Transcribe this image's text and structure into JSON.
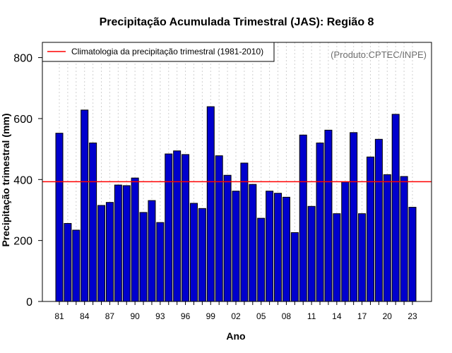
{
  "chart_data": {
    "type": "bar",
    "title": "Precipitação Acumulada Trimestral (JAS): Região 8",
    "xlabel": "Ano",
    "ylabel": "Precipitação trimestral (mm)",
    "ylim": [
      0,
      850
    ],
    "yticks": [
      0,
      200,
      400,
      600,
      800
    ],
    "grid": "vertical dotted",
    "credit": "(Produto:CPTEC/INPE)",
    "categories": [
      "81",
      "82",
      "83",
      "84",
      "85",
      "86",
      "87",
      "88",
      "89",
      "90",
      "91",
      "92",
      "93",
      "94",
      "95",
      "96",
      "97",
      "98",
      "99",
      "00",
      "01",
      "02",
      "03",
      "04",
      "05",
      "06",
      "07",
      "08",
      "09",
      "10",
      "11",
      "12",
      "13",
      "14",
      "15",
      "16",
      "17",
      "18",
      "19",
      "20",
      "21",
      "22",
      "23"
    ],
    "xtick_labels": [
      "81",
      "84",
      "87",
      "90",
      "93",
      "96",
      "99",
      "02",
      "05",
      "08",
      "11",
      "14",
      "17",
      "20",
      "23"
    ],
    "values": [
      552,
      256,
      234,
      628,
      520,
      315,
      325,
      382,
      380,
      405,
      292,
      331,
      259,
      484,
      494,
      482,
      322,
      305,
      639,
      478,
      414,
      362,
      454,
      384,
      273,
      362,
      355,
      342,
      226,
      546,
      312,
      520,
      562,
      288,
      392,
      554,
      288,
      474,
      532,
      416,
      614,
      410,
      309
    ],
    "bar_color": "#0000cd",
    "climatology": {
      "label": "Climatologia da precipitação trimestral (1981-2010)",
      "value": 393,
      "color": "#ff0000"
    },
    "legend_position": "top-left"
  }
}
